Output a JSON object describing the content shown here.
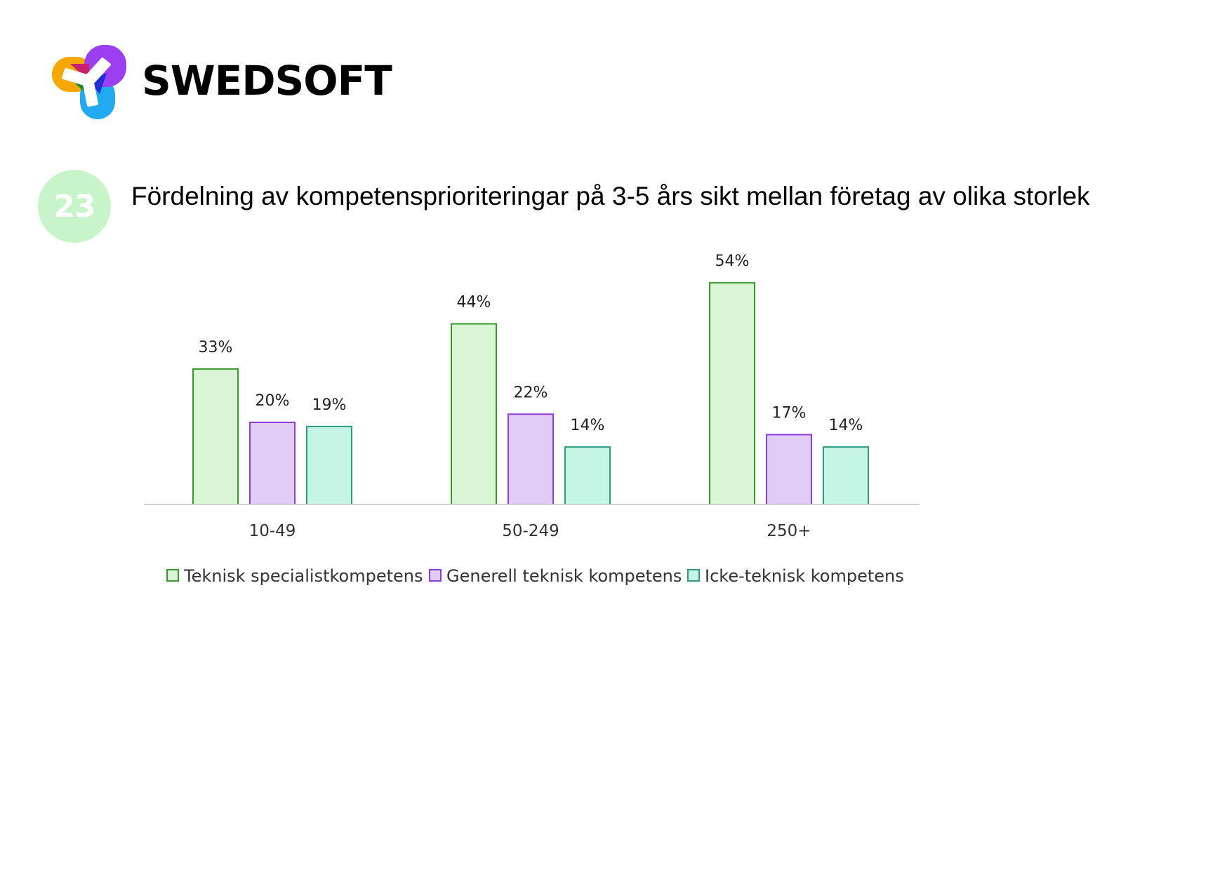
{
  "brand": {
    "name": "SWEDSOFT"
  },
  "figure_number": "23",
  "chart_data": {
    "type": "bar",
    "title": "Fördelning av kompetensprioriteringar på 3-5 års sikt mellan företag av olika storlek",
    "categories": [
      "10-49",
      "50-249",
      "250+"
    ],
    "series": [
      {
        "name": "Teknisk specialistkompetens",
        "values": [
          33,
          44,
          54
        ],
        "labels": [
          "33%",
          "44%",
          "54%"
        ],
        "fill": "#d9f5d6",
        "stroke": "#3a9a2e"
      },
      {
        "name": "Generell teknisk kompetens",
        "values": [
          20,
          22,
          17
        ],
        "labels": [
          "20%",
          "22%",
          "17%"
        ],
        "fill": "#e1ccf5",
        "stroke": "#8e3be0"
      },
      {
        "name": "Icke-teknisk kompetens",
        "values": [
          19,
          14,
          14
        ],
        "labels": [
          "19%",
          "14%",
          "14%"
        ],
        "fill": "#c4f5e5",
        "stroke": "#2e9a86"
      }
    ],
    "ylim": [
      0,
      60
    ],
    "grid": false,
    "legend_position": "bottom"
  }
}
